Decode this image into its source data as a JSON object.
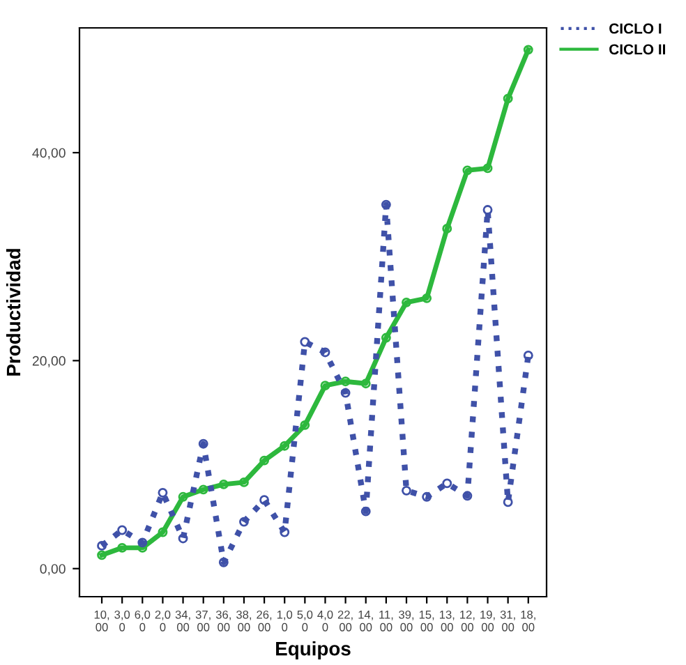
{
  "chart_data": {
    "type": "line",
    "xlabel": "Equipos",
    "ylabel": "Productividad",
    "categories": [
      "10,\n00",
      "3,0\n0",
      "6,0\n0",
      "2,0\n0",
      "34,\n00",
      "37,\n00",
      "36,\n00",
      "38,\n00",
      "26,\n00",
      "1,0\n0",
      "5,0\n0",
      "4,0\n0",
      "22,\n00",
      "14,\n00",
      "11,\n00",
      "39,\n00",
      "15,\n00",
      "13,\n00",
      "12,\n00",
      "19,\n00",
      "31,\n00",
      "18,\n00"
    ],
    "series": [
      {
        "name": "CICLO I",
        "color": "#3f51a8",
        "line_style": "dotted",
        "values": [
          2.2,
          3.7,
          2.5,
          7.3,
          2.9,
          12.0,
          0.6,
          4.5,
          6.6,
          3.5,
          21.8,
          20.8,
          16.9,
          5.5,
          35.0,
          7.5,
          6.9,
          8.2,
          7.0,
          34.5,
          6.4,
          20.5
        ]
      },
      {
        "name": "CICLO II",
        "color": "#2db83d",
        "line_style": "solid",
        "values": [
          1.3,
          2.0,
          2.0,
          3.5,
          6.9,
          7.6,
          8.1,
          8.3,
          10.4,
          11.8,
          13.8,
          17.6,
          18.0,
          17.8,
          22.2,
          25.6,
          26.0,
          32.7,
          38.3,
          38.5,
          45.2,
          49.9
        ]
      }
    ],
    "ylim": [
      -2.7,
      52
    ],
    "yticks": [
      {
        "value": 0,
        "label": "0,00"
      },
      {
        "value": 20,
        "label": "20,00"
      },
      {
        "value": 40,
        "label": "40,00"
      }
    ],
    "marker": "circle",
    "legend": "top right",
    "grid": false
  }
}
